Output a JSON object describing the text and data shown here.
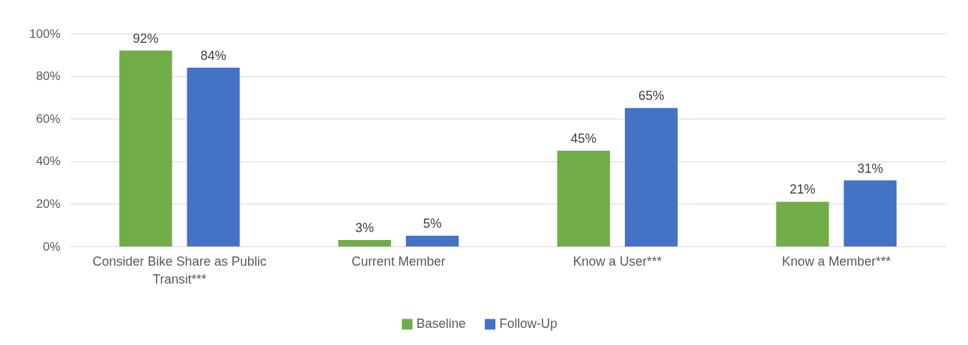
{
  "chart_data": {
    "type": "bar",
    "categories": [
      "Consider Bike Share as Public Transit***",
      "Current Member",
      "Know a User***",
      "Know a Member***"
    ],
    "series": [
      {
        "name": "Baseline",
        "color": "#70ad47",
        "values": [
          92,
          3,
          45,
          21
        ],
        "value_labels": [
          "92%",
          "3%",
          "45%",
          "21%"
        ]
      },
      {
        "name": "Follow-Up",
        "color": "#4472c4",
        "values": [
          84,
          5,
          65,
          31
        ],
        "value_labels": [
          "84%",
          "5%",
          "65%",
          "31%"
        ]
      }
    ],
    "ylim": [
      0,
      100
    ],
    "yticks": [
      {
        "value": 0,
        "label": "0%"
      },
      {
        "value": 20,
        "label": "20%"
      },
      {
        "value": 40,
        "label": "40%"
      },
      {
        "value": 60,
        "label": "60%"
      },
      {
        "value": 80,
        "label": "80%"
      },
      {
        "value": 100,
        "label": "100%"
      }
    ],
    "grid": "y",
    "legend": "bottom"
  }
}
